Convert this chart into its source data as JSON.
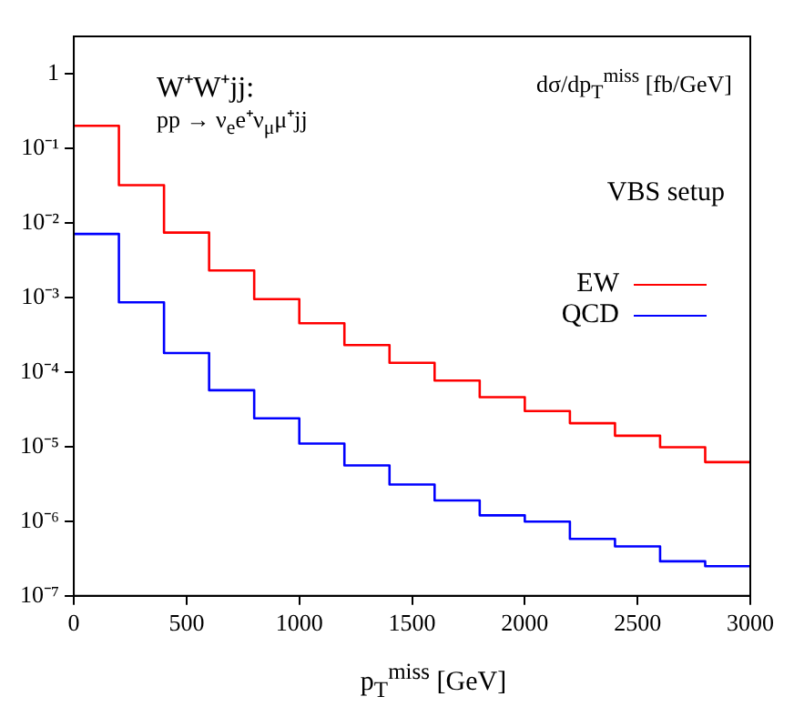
{
  "chart_data": {
    "type": "step",
    "xlabel": "p$_{T}$$^{miss}$ [GeV]",
    "ylabel": "dσ/dp$_{T}$$^{miss}$ [fb/GeV]",
    "annotations": [
      "W⁺W⁺jj:",
      "pp → ν$_{e}$e⁺ν$_{μ}$μ⁺jj",
      "VBS setup"
    ],
    "x": [
      0,
      200,
      400,
      600,
      800,
      1000,
      1200,
      1400,
      1600,
      1800,
      2000,
      2200,
      2400,
      2600,
      2800,
      3000
    ],
    "series": [
      {
        "name": "EW",
        "color": "#ff0000",
        "values": [
          0.2,
          0.032,
          0.0074,
          0.0023,
          0.00095,
          0.00045,
          0.00023,
          0.000133,
          7.7e-05,
          4.6e-05,
          3e-05,
          2.06e-05,
          1.4e-05,
          9.8e-06,
          6.2e-06,
          6.2e-06
        ]
      },
      {
        "name": "QCD",
        "color": "#0000ff",
        "values": [
          0.0071,
          0.00086,
          0.00018,
          5.7e-05,
          2.4e-05,
          1.1e-05,
          5.6e-06,
          3.1e-06,
          1.9e-06,
          1.2e-06,
          9.9e-07,
          5.8e-07,
          4.6e-07,
          2.9e-07,
          2.5e-07,
          2.5e-07
        ]
      }
    ],
    "log": true,
    "xlim": [
      0,
      3000
    ],
    "xticks": [
      0,
      500,
      1000,
      1500,
      2000,
      2500,
      3000
    ],
    "ylim": [
      1e-07,
      3.16
    ],
    "yticks": [
      {
        "value": 1e-07,
        "label": "10⁻⁷"
      },
      {
        "value": 1e-06,
        "label": "10⁻⁶"
      },
      {
        "value": 1e-05,
        "label": "10⁻⁵"
      },
      {
        "value": 0.0001,
        "label": "10⁻⁴"
      },
      {
        "value": 0.001,
        "label": "10⁻³"
      },
      {
        "value": 0.01,
        "label": "10⁻²"
      },
      {
        "value": 0.1,
        "label": "10⁻¹"
      },
      {
        "value": 1,
        "label": "1"
      }
    ],
    "grid": false,
    "legend": "right",
    "line_style": "solid",
    "marker": "none"
  }
}
